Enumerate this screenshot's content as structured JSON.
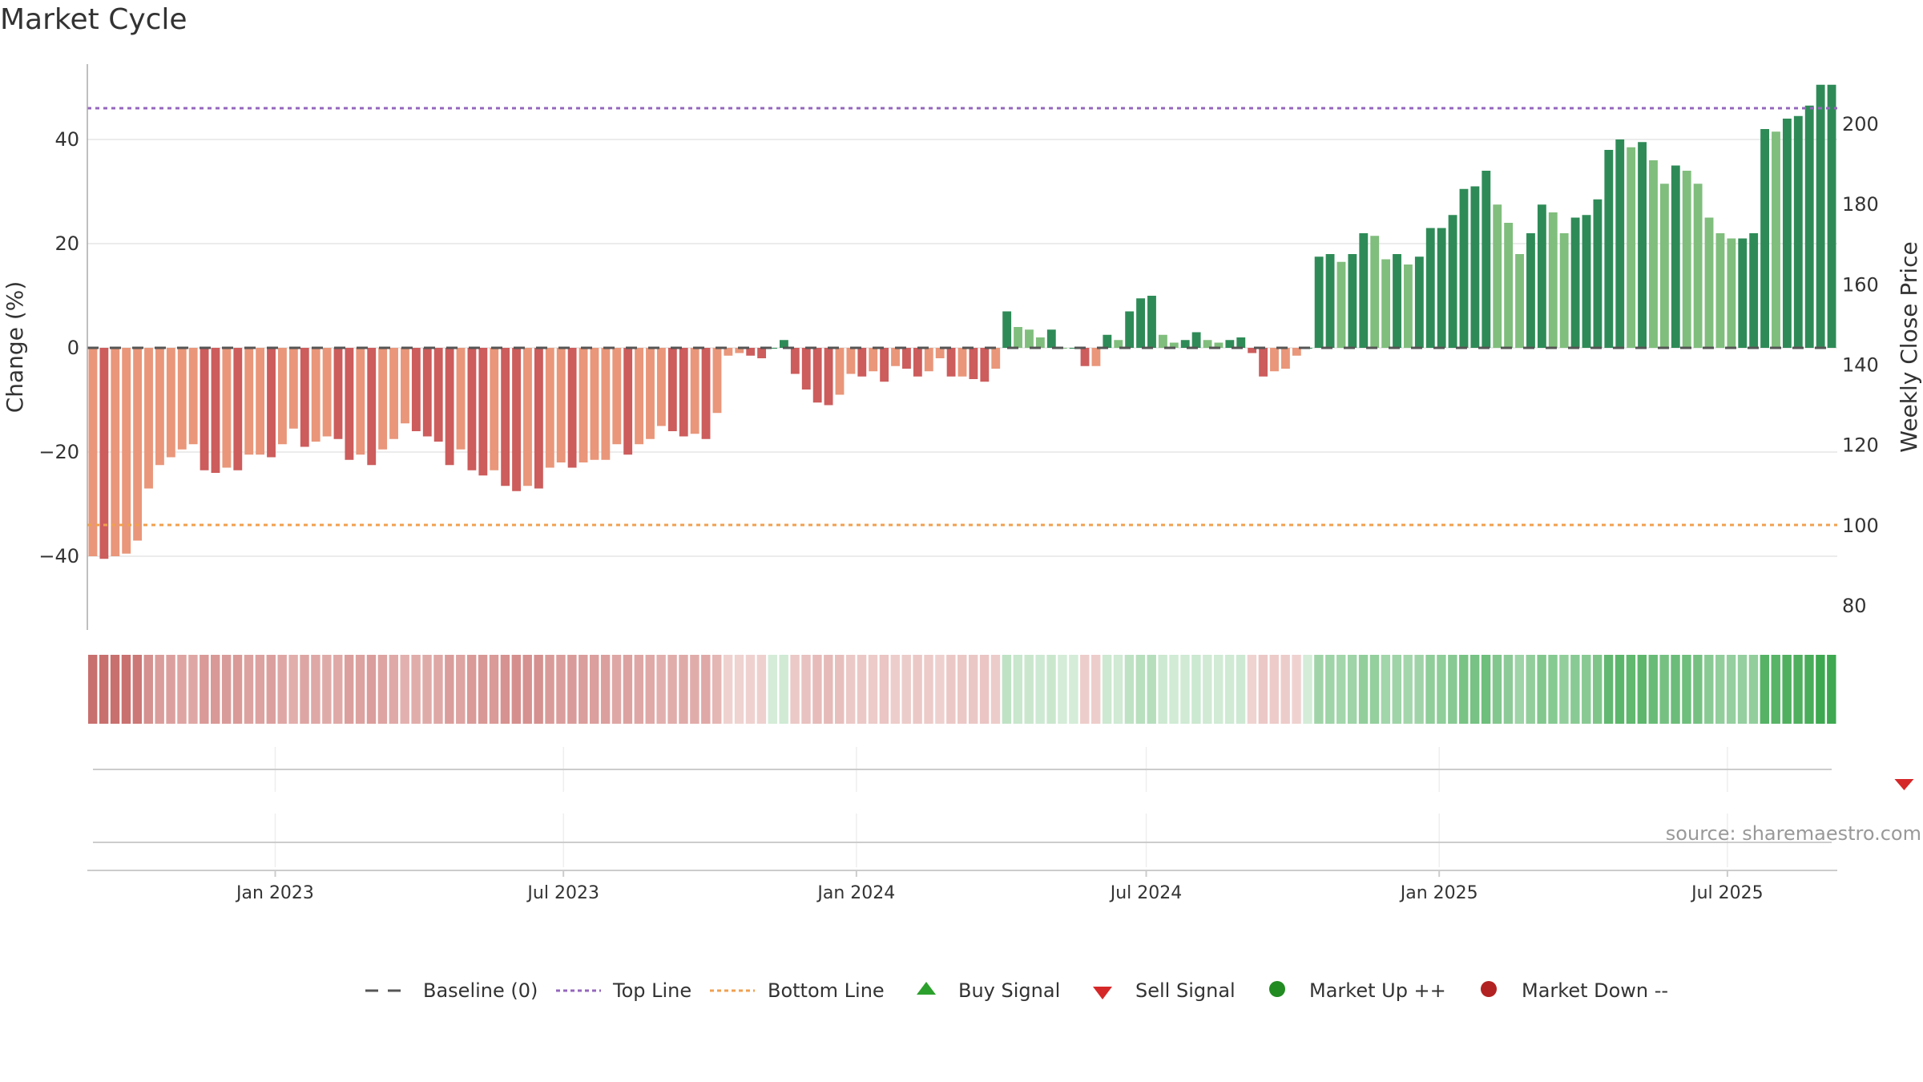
{
  "chart_data": {
    "type": "bar",
    "title": "Market Cycle",
    "ylabel_left": "Change (%)",
    "ylabel_right": "Weekly Close Price",
    "yticks_left": [
      {
        "v": 40,
        "label": "40"
      },
      {
        "v": 20,
        "label": "20"
      },
      {
        "v": 0,
        "label": "0"
      },
      {
        "v": -20,
        "label": "−20"
      },
      {
        "v": -40,
        "label": "−40"
      }
    ],
    "yticks_right": [
      "200",
      "180",
      "160",
      "140",
      "120",
      "100",
      "80"
    ],
    "ylim_left": [
      -54,
      55
    ],
    "ylim_right": [
      74,
      215
    ],
    "top_line": 46,
    "bottom_line": -34,
    "grid": true,
    "x_ticks": [
      "Jan 2023",
      "Jul 2023",
      "Jan 2024",
      "Jul 2024",
      "Jan 2025",
      "Jul 2025"
    ],
    "x_tick_dates": [
      "2023-01-01",
      "2023-07-01",
      "2024-01-01",
      "2024-07-01",
      "2025-01-01",
      "2025-07-01"
    ],
    "start_date": "2022-09-05",
    "week_days": 7,
    "values": [
      -40,
      -40.5,
      -40,
      -39.5,
      -37,
      -27,
      -22.5,
      -21,
      -19.5,
      -18.5,
      -23.5,
      -24,
      -23,
      -23.5,
      -20.5,
      -20.5,
      -21,
      -18.5,
      -15.5,
      -19,
      -18,
      -17,
      -17.5,
      -21.5,
      -20.5,
      -22.5,
      -19.5,
      -17.5,
      -14.5,
      -16,
      -17,
      -18,
      -22.5,
      -19.5,
      -23.5,
      -24.5,
      -23.5,
      -26.5,
      -27.5,
      -26.5,
      -27,
      -23,
      -22,
      -23,
      -22,
      -21.5,
      -21.5,
      -18.5,
      -20.5,
      -18.5,
      -17.5,
      -15,
      -16,
      -17,
      -16.5,
      -17.5,
      -12.5,
      -1.5,
      -1,
      -1.5,
      -2,
      0,
      1.5,
      -5,
      -8,
      -10.5,
      -11,
      -9,
      -5,
      -5.5,
      -4.5,
      -6.5,
      -3.5,
      -4,
      -5.5,
      -4.5,
      -2,
      -5.5,
      -5.5,
      -6,
      -6.5,
      -4,
      7,
      4,
      3.5,
      2,
      3.5,
      0,
      0,
      -3.5,
      -3.5,
      2.5,
      1.5,
      7,
      9.5,
      10,
      2.5,
      1,
      1.5,
      3,
      1.5,
      1,
      1.5,
      2,
      -1,
      -5.5,
      -4.5,
      -4,
      -1.5,
      0,
      17.5,
      18,
      16.5,
      18,
      22,
      21.5,
      17,
      18,
      16,
      17.5,
      23,
      23,
      25.5,
      30.5,
      31,
      34,
      27.5,
      24,
      18,
      22,
      27.5,
      26,
      22,
      25,
      25.5,
      28.5,
      38,
      40,
      38.5,
      39.5,
      36,
      31.5,
      35,
      34,
      31.5,
      25,
      22,
      21,
      21,
      22,
      42,
      41.5,
      44,
      44.5,
      46.5,
      50.5,
      50.5
    ],
    "signals": [
      {
        "type": "sell",
        "date": "2025-10-20"
      }
    ],
    "colors": {
      "positive_strong": "#2e8b57",
      "positive_light": "#80be7d",
      "negative_strong": "#cd5c5c",
      "negative_light": "#e9967a",
      "top_line": "#9467bd",
      "bottom_line": "#f0a050",
      "baseline": "#555555",
      "sell": "#d62728",
      "buy": "#2ca02c",
      "market_up": "#228b22",
      "market_down": "#b22222",
      "grid": "#e6e6e6"
    }
  },
  "legend": [
    {
      "key": "baseline",
      "label": "Baseline (0)"
    },
    {
      "key": "top",
      "label": "Top Line"
    },
    {
      "key": "bottom",
      "label": "Bottom Line"
    },
    {
      "key": "buy",
      "label": "Buy Signal"
    },
    {
      "key": "sell",
      "label": "Sell Signal"
    },
    {
      "key": "up",
      "label": "Market Up ++"
    },
    {
      "key": "down",
      "label": "Market Down --"
    }
  ],
  "source": "source: sharemaestro.com"
}
